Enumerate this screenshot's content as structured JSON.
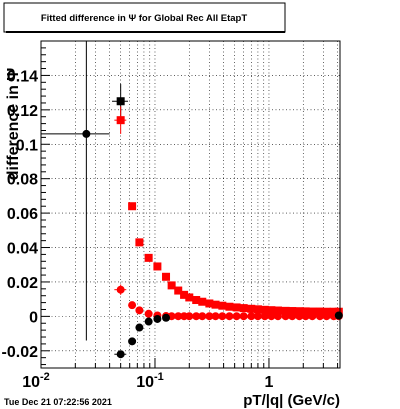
{
  "chart_data": {
    "type": "scatter",
    "title": "Fitted difference in  Ψ  for Global Rec All EtapT",
    "xlabel": "pT/|q| (GeV/c)",
    "ylabel": "difference in  Ψ",
    "xscale": "log",
    "xlim": [
      0.01,
      4.2
    ],
    "ylim": [
      -0.03,
      0.16
    ],
    "grid": true,
    "x_ticks": [
      {
        "value": 0.01,
        "label": "10",
        "sup": "-2"
      },
      {
        "value": 0.1,
        "label": "10",
        "sup": "-1"
      },
      {
        "value": 1,
        "label": "1",
        "sup": ""
      }
    ],
    "y_ticks": [
      {
        "value": -0.02,
        "label": "-0.02"
      },
      {
        "value": 0,
        "label": "0"
      },
      {
        "value": 0.02,
        "label": "0.02"
      },
      {
        "value": 0.04,
        "label": "0.04"
      },
      {
        "value": 0.06,
        "label": "0.06"
      },
      {
        "value": 0.08,
        "label": "0.08"
      },
      {
        "value": 0.1,
        "label": "0.1"
      },
      {
        "value": 0.12,
        "label": "0.12"
      },
      {
        "value": 0.14,
        "label": "0.14"
      }
    ],
    "series": [
      {
        "marker": "square",
        "color": "#000000",
        "points": [
          [
            0.05,
            0.125,
            0.008,
            0.01
          ]
        ]
      },
      {
        "marker": "square",
        "color": "#ff0000",
        "points": [
          [
            0.05,
            0.114,
            0.006,
            0.008
          ],
          [
            0.063,
            0.064,
            0,
            0
          ],
          [
            0.073,
            0.043,
            0,
            0
          ],
          [
            0.088,
            0.034,
            0,
            0
          ],
          [
            0.105,
            0.029,
            0,
            0
          ],
          [
            0.125,
            0.023,
            0,
            0
          ],
          [
            0.14,
            0.018,
            0,
            0
          ],
          [
            0.16,
            0.015,
            0,
            0
          ],
          [
            0.18,
            0.0125,
            0,
            0
          ],
          [
            0.2,
            0.011,
            0,
            0
          ],
          [
            0.23,
            0.0095,
            0,
            0
          ],
          [
            0.26,
            0.0085,
            0,
            0
          ],
          [
            0.3,
            0.0075,
            0,
            0
          ],
          [
            0.34,
            0.0068,
            0,
            0
          ],
          [
            0.39,
            0.0062,
            0,
            0
          ],
          [
            0.45,
            0.0056,
            0,
            0
          ],
          [
            0.52,
            0.0052,
            0,
            0
          ],
          [
            0.6,
            0.0048,
            0,
            0
          ],
          [
            0.7,
            0.0044,
            0,
            0
          ],
          [
            0.8,
            0.0041,
            0,
            0
          ],
          [
            0.92,
            0.0038,
            0,
            0
          ],
          [
            1.05,
            0.0036,
            0,
            0
          ],
          [
            1.2,
            0.0034,
            0,
            0
          ],
          [
            1.4,
            0.0032,
            0,
            0
          ],
          [
            1.6,
            0.0031,
            0,
            0
          ],
          [
            1.85,
            0.003,
            0,
            0
          ],
          [
            2.1,
            0.0029,
            0,
            0
          ],
          [
            2.4,
            0.0028,
            0,
            0
          ],
          [
            2.8,
            0.0028,
            0,
            0
          ],
          [
            3.2,
            0.0027,
            0,
            0
          ],
          [
            3.7,
            0.0027,
            0,
            0
          ],
          [
            4.1,
            0.0027,
            0,
            0
          ]
        ]
      },
      {
        "marker": "circle",
        "color": "#ff0000",
        "points": [
          [
            0.05,
            0.0155,
            0.006,
            0.003
          ],
          [
            0.063,
            0.0065,
            0,
            0
          ],
          [
            0.073,
            0.0035,
            0,
            0
          ],
          [
            0.088,
            0.0015,
            0,
            0
          ],
          [
            0.105,
            0.0005,
            0,
            0
          ],
          [
            0.125,
            0.0002,
            0,
            0
          ],
          [
            0.14,
            0.0001,
            0,
            0
          ],
          [
            0.16,
            0.0001,
            0,
            0
          ],
          [
            0.18,
            0.0001,
            0,
            0
          ],
          [
            0.2,
            0.0001,
            0,
            0
          ],
          [
            0.23,
            0.0001,
            0,
            0
          ],
          [
            0.26,
            0.0001,
            0,
            0
          ],
          [
            0.3,
            0.0001,
            0,
            0
          ],
          [
            0.34,
            0.0001,
            0,
            0
          ],
          [
            0.39,
            0.0001,
            0,
            0
          ],
          [
            0.45,
            0.0001,
            0,
            0
          ],
          [
            0.52,
            0.0001,
            0,
            0
          ],
          [
            0.6,
            0.0001,
            0,
            0
          ],
          [
            0.7,
            0.0001,
            0,
            0
          ],
          [
            0.8,
            0.0001,
            0,
            0
          ],
          [
            0.92,
            0.0001,
            0,
            0
          ],
          [
            1.05,
            0.0001,
            0,
            0
          ],
          [
            1.2,
            0.0001,
            0,
            0
          ],
          [
            1.4,
            0.0001,
            0,
            0
          ],
          [
            1.6,
            0.0001,
            0,
            0
          ],
          [
            1.85,
            0.0001,
            0,
            0
          ],
          [
            2.1,
            0.0001,
            0,
            0
          ],
          [
            2.4,
            0.0001,
            0,
            0
          ],
          [
            2.8,
            0.0001,
            0,
            0
          ],
          [
            3.2,
            0.0001,
            0,
            0
          ],
          [
            3.7,
            0.0001,
            0,
            0
          ],
          [
            4.1,
            0.0001,
            0,
            0
          ]
        ]
      },
      {
        "marker": "circle",
        "color": "#000000",
        "points": [
          [
            0.025,
            0.106,
            0.015,
            0.12
          ],
          [
            0.05,
            -0.022,
            0.006,
            0.002
          ],
          [
            0.063,
            -0.0145,
            0,
            0
          ],
          [
            0.073,
            -0.0065,
            0,
            0
          ],
          [
            0.088,
            -0.003,
            0,
            0
          ],
          [
            0.105,
            -0.0015,
            0,
            0
          ],
          [
            0.125,
            -0.0008,
            0,
            0
          ],
          [
            4.1,
            0.0005,
            0,
            0
          ]
        ]
      }
    ],
    "footer_text": "Tue Dec 21 07:22:56 2021"
  }
}
